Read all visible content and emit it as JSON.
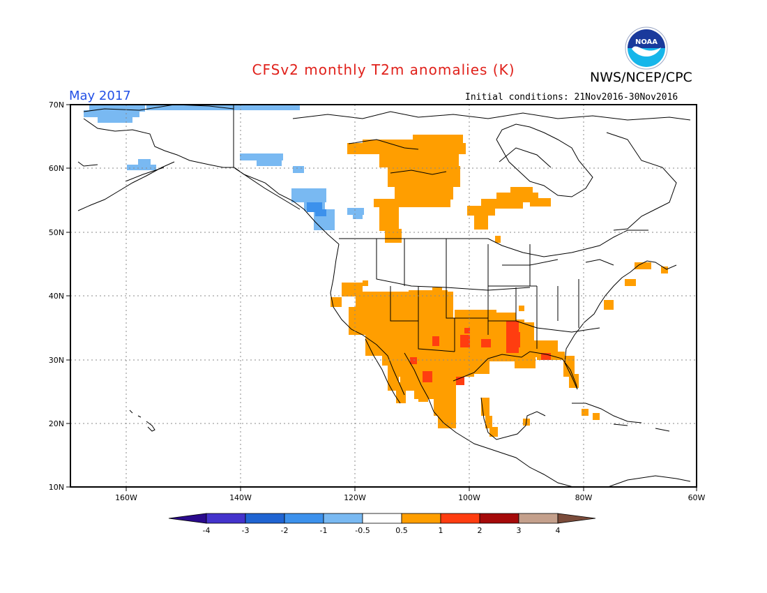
{
  "title": "CFSv2 monthly T2m anomalies (K)",
  "agency": "NWS/NCEP/CPC",
  "logo_text": "NOAA",
  "valid_month": "May 2017",
  "initial_conditions": "Initial conditions: 21Nov2016-30Nov2016",
  "lat_labels": [
    "70N",
    "60N",
    "50N",
    "40N",
    "30N",
    "20N",
    "10N"
  ],
  "lon_labels": [
    "160W",
    "140W",
    "120W",
    "100W",
    "80W",
    "60W"
  ],
  "colorbar": {
    "ticks": [
      "-4",
      "-3",
      "-2",
      "-1",
      "-0.5",
      "0.5",
      "1",
      "2",
      "3",
      "4"
    ],
    "colors": [
      "#2a0a8c",
      "#4433cc",
      "#1f64d2",
      "#3c91ec",
      "#79b9f2",
      "#ffffff",
      "#ff9e00",
      "#ff3d10",
      "#a50a0a",
      "#c4a08c",
      "#7a4b3a"
    ]
  },
  "colors": {
    "title": "#e0201a",
    "month": "#2350e6",
    "warm_moderate": "#ff9e00",
    "warm_strong": "#ff3d10",
    "cool_light": "#79b9f2",
    "cool_moderate": "#3c91ec"
  }
}
